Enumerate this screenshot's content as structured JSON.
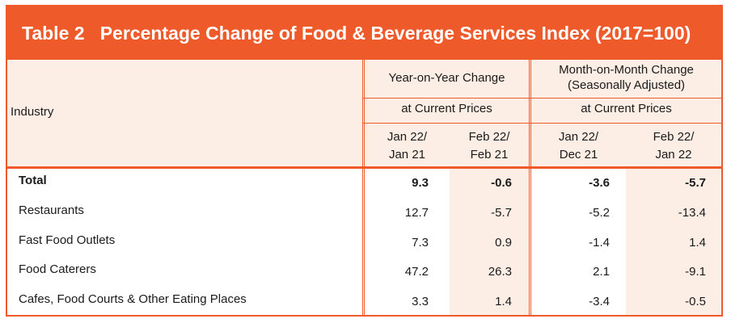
{
  "title": "Table 2   Percentage Change of Food & Beverage Services Index (2017=100)",
  "header": {
    "industry_label": "Industry",
    "yoy": {
      "group_label": "Year-on-Year Change",
      "prices_label": "at Current Prices",
      "col1": [
        "Jan 22/",
        "Jan 21"
      ],
      "col2": [
        "Feb 22/",
        "Feb 21"
      ]
    },
    "mom": {
      "group_label_line1": "Month-on-Month Change",
      "group_label_line2": "(Seasonally Adjusted)",
      "prices_label": "at Current Prices",
      "col1": [
        "Jan 22/",
        "Dec 21"
      ],
      "col2": [
        "Feb 22/",
        "Jan 22"
      ]
    }
  },
  "rows": [
    {
      "industry": "Total",
      "values": [
        "9.3",
        "-0.6",
        "-3.6",
        "-5.7"
      ],
      "bold": true
    },
    {
      "industry": "Restaurants",
      "values": [
        "12.7",
        "-5.7",
        "-5.2",
        "-13.4"
      ],
      "bold": false
    },
    {
      "industry": "Fast Food Outlets",
      "values": [
        "7.3",
        "0.9",
        "-1.4",
        "1.4"
      ],
      "bold": false
    },
    {
      "industry": "Food Caterers",
      "values": [
        "47.2",
        "26.3",
        "2.1",
        "-9.1"
      ],
      "bold": false
    },
    {
      "industry": "Cafes, Food Courts & Other Eating Places",
      "values": [
        "3.3",
        "1.4",
        "-3.4",
        "-0.5"
      ],
      "bold": false
    }
  ],
  "colors": {
    "accent": "#ee5a2a",
    "shade": "#fdeee5"
  }
}
